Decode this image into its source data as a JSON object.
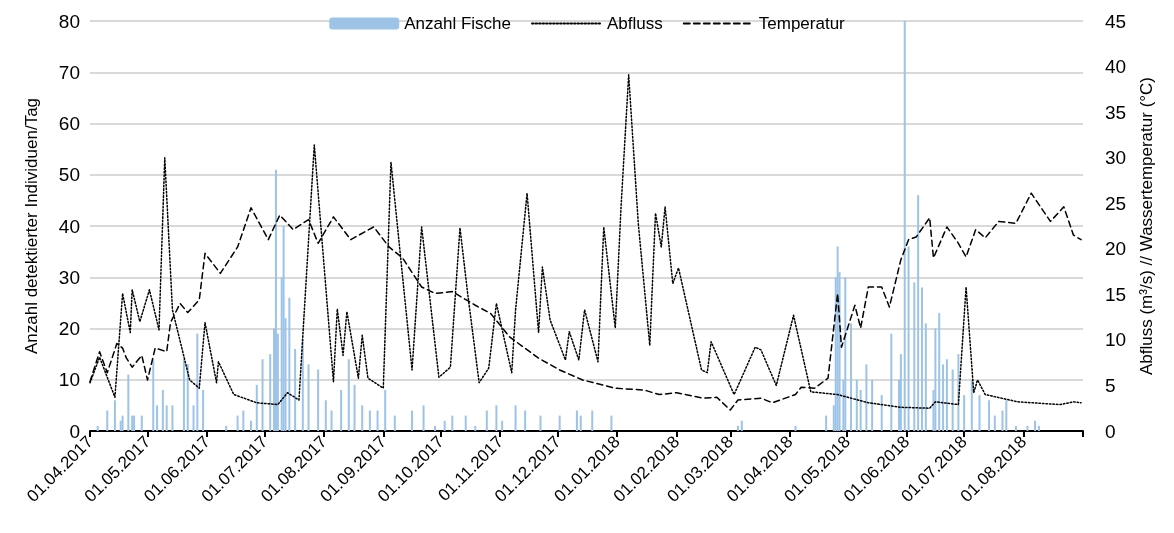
{
  "chart_data": {
    "type": "bar",
    "ylabel": "Anzahl detektierter Individuen/Tag",
    "y2label": "Abfluss (m³/s) // Wassertemperatur (°C)",
    "xlim": [
      "2017-04-01",
      "2018-09-01"
    ],
    "xticks": [
      {
        "value": "2017-04-01",
        "label": "01.04.2017"
      },
      {
        "value": "2017-05-01",
        "label": "01.05.2017"
      },
      {
        "value": "2017-06-01",
        "label": "01.06.2017"
      },
      {
        "value": "2017-07-01",
        "label": "01.07.2017"
      },
      {
        "value": "2017-08-01",
        "label": "01.08.2017"
      },
      {
        "value": "2017-09-01",
        "label": "01.09.2017"
      },
      {
        "value": "2017-10-01",
        "label": "01.10.2017"
      },
      {
        "value": "2017-11-01",
        "label": "01.11.2017"
      },
      {
        "value": "2017-12-01",
        "label": "01.12.2017"
      },
      {
        "value": "2018-01-01",
        "label": "01.01.2018"
      },
      {
        "value": "2018-02-01",
        "label": "01.02.2018"
      },
      {
        "value": "2018-03-01",
        "label": "01.03.2018"
      },
      {
        "value": "2018-04-01",
        "label": "01.04.2018"
      },
      {
        "value": "2018-05-01",
        "label": "01.05.2018"
      },
      {
        "value": "2018-06-01",
        "label": "01.06.2018"
      },
      {
        "value": "2018-07-01",
        "label": "01.07.2018"
      },
      {
        "value": "2018-08-01",
        "label": "01.08.2018"
      },
      {
        "value": "2018-09-01",
        "label": null
      }
    ],
    "ylim": [
      0,
      80
    ],
    "yticks": [
      0,
      10,
      20,
      30,
      40,
      50,
      60,
      70,
      80
    ],
    "y2lim": [
      0,
      45
    ],
    "y2ticks": [
      0,
      5,
      10,
      15,
      20,
      25,
      30,
      35,
      40,
      45
    ],
    "grid": "y",
    "legend": "top",
    "marker": "none",
    "series": [
      {
        "name": "Anzahl Fische",
        "color": "#9dc3e6",
        "x": [
          "2017-04-05",
          "2017-04-10",
          "2017-04-14",
          "2017-04-17",
          "2017-04-18",
          "2017-04-21",
          "2017-04-23",
          "2017-04-24",
          "2017-04-28",
          "2017-05-04",
          "2017-05-06",
          "2017-05-09",
          "2017-05-11",
          "2017-05-14",
          "2017-05-20",
          "2017-05-22",
          "2017-05-25",
          "2017-05-27",
          "2017-05-30",
          "2017-06-11",
          "2017-06-17",
          "2017-06-20",
          "2017-06-24",
          "2017-06-27",
          "2017-06-30",
          "2017-07-04",
          "2017-07-06",
          "2017-07-07",
          "2017-07-08",
          "2017-07-10",
          "2017-07-11",
          "2017-07-12",
          "2017-07-14",
          "2017-07-17",
          "2017-07-21",
          "2017-07-24",
          "2017-07-29",
          "2017-08-02",
          "2017-08-05",
          "2017-08-10",
          "2017-08-14",
          "2017-08-17",
          "2017-08-21",
          "2017-08-25",
          "2017-08-29",
          "2017-09-02",
          "2017-09-07",
          "2017-09-16",
          "2017-09-22",
          "2017-09-28",
          "2017-10-03",
          "2017-10-07",
          "2017-10-14",
          "2017-10-19",
          "2017-10-25",
          "2017-10-30",
          "2017-11-02",
          "2017-11-09",
          "2017-11-14",
          "2017-11-22",
          "2017-12-02",
          "2017-12-11",
          "2017-12-13",
          "2017-12-19",
          "2017-12-29",
          "2018-03-05",
          "2018-03-07",
          "2018-04-04",
          "2018-04-20",
          "2018-04-24",
          "2018-04-25",
          "2018-04-26",
          "2018-04-27",
          "2018-04-29",
          "2018-04-30",
          "2018-05-03",
          "2018-05-06",
          "2018-05-08",
          "2018-05-11",
          "2018-05-14",
          "2018-05-19",
          "2018-05-24",
          "2018-05-28",
          "2018-05-29",
          "2018-05-31",
          "2018-06-02",
          "2018-06-05",
          "2018-06-07",
          "2018-06-09",
          "2018-06-11",
          "2018-06-15",
          "2018-06-16",
          "2018-06-18",
          "2018-06-20",
          "2018-06-22",
          "2018-06-25",
          "2018-06-28",
          "2018-07-01",
          "2018-07-05",
          "2018-07-09",
          "2018-07-14",
          "2018-07-17",
          "2018-07-21",
          "2018-07-23",
          "2018-07-28",
          "2018-08-03",
          "2018-08-07",
          "2018-08-09"
        ],
        "values": [
          1,
          4,
          6,
          2,
          3,
          11,
          3,
          3,
          3,
          14,
          5,
          8,
          5,
          5,
          14,
          13,
          5,
          19,
          8,
          1,
          3,
          4,
          2,
          9,
          14,
          15,
          20,
          51,
          19,
          30,
          40,
          22,
          26,
          16,
          18,
          13,
          12,
          6,
          4,
          8,
          14,
          9,
          5,
          4,
          4,
          8,
          3,
          4,
          5,
          1,
          2,
          3,
          3,
          1,
          4,
          5,
          2,
          5,
          4,
          3,
          3,
          4,
          3,
          4,
          3,
          1,
          2,
          1,
          3,
          5,
          30,
          36,
          31,
          10,
          30,
          21,
          10,
          8,
          13,
          10,
          7,
          19,
          10,
          15,
          80,
          36,
          29,
          46,
          28,
          21,
          8,
          20,
          23,
          13,
          14,
          12,
          15,
          7,
          10,
          7,
          6,
          3,
          4,
          6,
          1,
          1,
          2,
          1
        ]
      },
      {
        "name": "Abfluss",
        "type": "line",
        "axis": "y2",
        "color": "#000000",
        "line_style": "dotted",
        "x": [
          "2017-04-01",
          "2017-04-06",
          "2017-04-14",
          "2017-04-18",
          "2017-04-22",
          "2017-04-23",
          "2017-04-27",
          "2017-05-02",
          "2017-05-07",
          "2017-05-10",
          "2017-05-14",
          "2017-05-23",
          "2017-05-28",
          "2017-05-31",
          "2017-06-06",
          "2017-06-07",
          "2017-06-15",
          "2017-06-27",
          "2017-07-08",
          "2017-07-13",
          "2017-07-19",
          "2017-07-27",
          "2017-08-06",
          "2017-08-08",
          "2017-08-11",
          "2017-08-13",
          "2017-08-19",
          "2017-08-21",
          "2017-08-24",
          "2017-09-01",
          "2017-09-05",
          "2017-09-16",
          "2017-09-21",
          "2017-09-30",
          "2017-10-06",
          "2017-10-11",
          "2017-10-15",
          "2017-10-21",
          "2017-10-26",
          "2017-10-30",
          "2017-11-07",
          "2017-11-09",
          "2017-11-15",
          "2017-11-21",
          "2017-11-23",
          "2017-11-27",
          "2017-12-05",
          "2017-12-07",
          "2017-12-12",
          "2017-12-15",
          "2017-12-22",
          "2017-12-25",
          "2017-12-31",
          "2018-01-03",
          "2018-01-07",
          "2018-01-12",
          "2018-01-18",
          "2018-01-21",
          "2018-01-24",
          "2018-01-26",
          "2018-01-30",
          "2018-02-02",
          "2018-02-14",
          "2018-02-17",
          "2018-02-19",
          "2018-03-03",
          "2018-03-14",
          "2018-03-17",
          "2018-03-25",
          "2018-04-03",
          "2018-04-12",
          "2018-04-26",
          "2018-05-12",
          "2018-05-29",
          "2018-06-13",
          "2018-06-16",
          "2018-06-28",
          "2018-07-02",
          "2018-07-06",
          "2018-07-08",
          "2018-07-12",
          "2018-07-29",
          "2018-08-20",
          "2018-08-27",
          "2018-08-31"
        ],
        "values": [
          5.3,
          8.1,
          3.7,
          15.1,
          10.8,
          15.5,
          12.0,
          15.5,
          11.1,
          30.0,
          13.3,
          5.6,
          4.7,
          11.9,
          5.3,
          7.6,
          4.0,
          3.1,
          2.9,
          4.2,
          3.4,
          31.4,
          5.4,
          13.4,
          8.3,
          13.1,
          5.8,
          10.5,
          5.8,
          4.7,
          29.5,
          6.7,
          22.4,
          5.9,
          7.0,
          22.3,
          15.1,
          5.3,
          6.9,
          14.0,
          6.4,
          13.3,
          26.1,
          10.8,
          18.0,
          12.2,
          7.8,
          10.9,
          7.8,
          13.3,
          7.6,
          22.4,
          11.3,
          24.5,
          39.1,
          22.8,
          9.4,
          23.9,
          20.2,
          24.6,
          16.2,
          17.9,
          6.7,
          6.4,
          9.8,
          4.0,
          9.2,
          8.9,
          5.0,
          12.7,
          4.3,
          4.0,
          3.1,
          2.6,
          2.5,
          3.2,
          2.9,
          15.8,
          4.2,
          5.6,
          4.0,
          3.2,
          2.9,
          3.2,
          3.1
        ]
      },
      {
        "name": "Temperatur",
        "type": "line",
        "axis": "y2",
        "color": "#000000",
        "line_style": "dashed",
        "x": [
          "2017-04-01",
          "2017-04-06",
          "2017-04-10",
          "2017-04-15",
          "2017-04-18",
          "2017-04-20",
          "2017-04-23",
          "2017-04-28",
          "2017-05-01",
          "2017-05-05",
          "2017-05-11",
          "2017-05-13",
          "2017-05-18",
          "2017-05-22",
          "2017-05-28",
          "2017-05-31",
          "2017-06-08",
          "2017-06-17",
          "2017-06-24",
          "2017-07-03",
          "2017-07-09",
          "2017-07-16",
          "2017-07-24",
          "2017-07-29",
          "2017-08-06",
          "2017-08-15",
          "2017-08-27",
          "2017-09-04",
          "2017-09-11",
          "2017-09-21",
          "2017-09-28",
          "2017-10-07",
          "2017-10-19",
          "2017-10-27",
          "2017-11-06",
          "2017-11-21",
          "2017-12-02",
          "2017-12-14",
          "2017-12-31",
          "2018-01-15",
          "2018-01-23",
          "2018-02-01",
          "2018-02-15",
          "2018-02-22",
          "2018-03-01",
          "2018-03-05",
          "2018-03-17",
          "2018-03-23",
          "2018-04-04",
          "2018-04-07",
          "2018-04-14",
          "2018-04-21",
          "2018-04-26",
          "2018-04-28",
          "2018-05-05",
          "2018-05-08",
          "2018-05-12",
          "2018-05-19",
          "2018-05-23",
          "2018-05-29",
          "2018-06-02",
          "2018-06-06",
          "2018-06-13",
          "2018-06-15",
          "2018-06-22",
          "2018-06-28",
          "2018-07-02",
          "2018-07-07",
          "2018-07-12",
          "2018-07-19",
          "2018-07-28",
          "2018-08-05",
          "2018-08-15",
          "2018-08-22",
          "2018-08-27",
          "2018-08-31"
        ],
        "values": [
          5.4,
          8.7,
          6.4,
          9.6,
          9.1,
          8.0,
          7.0,
          8.3,
          5.6,
          9.1,
          8.7,
          11.9,
          14.0,
          13.0,
          14.4,
          19.5,
          17.3,
          20.2,
          24.5,
          21.0,
          23.7,
          22.1,
          23.2,
          20.6,
          23.5,
          21.0,
          22.4,
          20.2,
          19.0,
          15.8,
          15.1,
          15.3,
          13.8,
          12.9,
          10.3,
          8.0,
          6.7,
          5.6,
          4.7,
          4.5,
          4.0,
          4.2,
          3.6,
          3.7,
          2.3,
          3.4,
          3.6,
          3.1,
          4.0,
          4.8,
          4.7,
          5.8,
          15.1,
          9.2,
          13.8,
          11.3,
          15.8,
          15.8,
          13.6,
          18.8,
          21.0,
          21.3,
          23.4,
          19.0,
          22.4,
          20.6,
          19.1,
          22.1,
          21.2,
          23.0,
          22.8,
          26.1,
          23.0,
          24.6,
          21.5,
          21.0
        ]
      }
    ]
  }
}
